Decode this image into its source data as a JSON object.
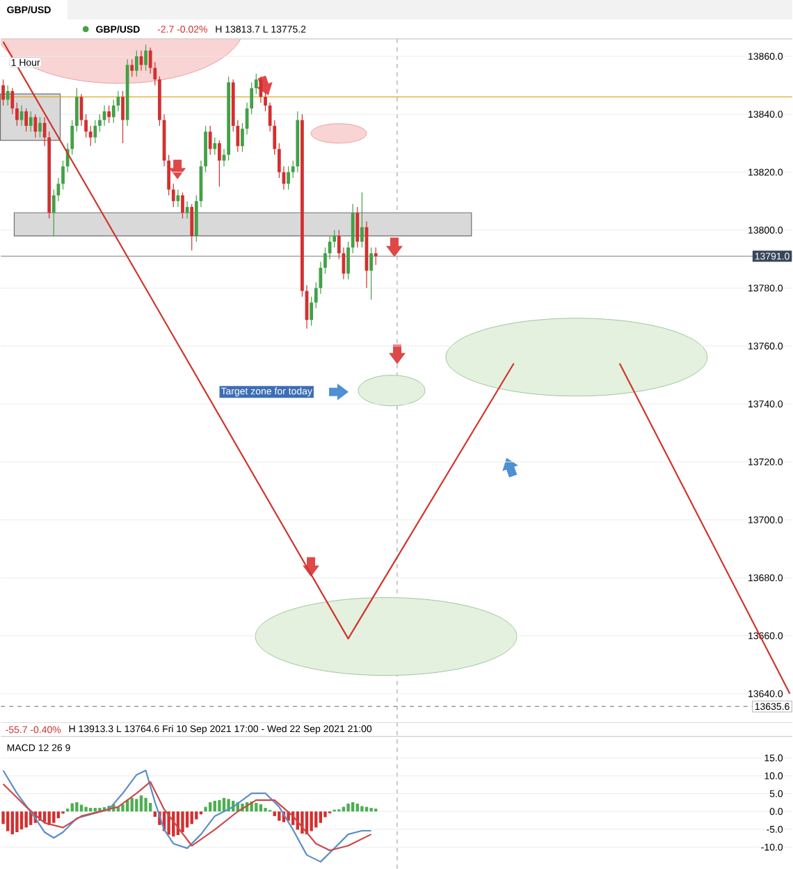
{
  "chart_data": [
    {
      "type": "candlestick",
      "title": "GBP/USD",
      "annotations": [
        "GBP/USD",
        "-2.7  -0.02%",
        "H 13813.7  L 13775.2",
        "1 Hour",
        "Target zone for today",
        "-55.7  -0.40%",
        "H 13913.3  L 13764.6  Fri 10 Sep 2021 17:00 - Wed 22 Sep 2021 21:00"
      ],
      "categories": [
        null,
        null,
        null,
        null,
        null,
        null,
        null,
        null,
        null,
        null,
        null,
        null,
        null,
        null,
        null,
        null,
        null,
        null,
        null,
        null,
        null,
        null,
        null,
        null,
        null,
        null,
        null,
        null,
        null,
        null,
        null,
        null,
        null,
        null,
        null,
        null,
        null,
        null,
        null,
        null,
        null,
        null,
        null,
        null,
        null,
        null,
        null,
        null,
        null,
        null,
        null,
        null,
        null,
        null,
        null,
        null,
        null,
        null,
        null,
        null,
        null,
        null,
        null,
        null,
        null,
        null,
        null,
        null,
        null,
        null,
        null,
        null,
        null,
        null,
        null,
        null,
        null,
        null,
        null,
        null,
        null,
        null,
        null,
        null,
        null,
        null,
        null,
        null,
        null,
        null,
        null,
        null,
        null,
        null,
        null,
        null,
        null,
        null,
        null,
        null,
        null,
        null,
        null,
        null,
        null,
        null,
        null,
        null,
        null,
        null,
        null,
        null,
        null,
        null,
        null,
        null,
        null,
        null,
        null,
        null,
        null,
        null,
        null,
        null,
        null,
        null,
        null,
        null,
        null,
        null,
        null,
        null,
        null,
        null,
        null,
        null,
        null,
        null,
        null,
        null,
        null,
        null,
        null,
        null,
        null,
        null,
        null,
        null,
        null,
        null,
        null,
        null,
        null,
        null,
        null,
        null,
        null,
        null,
        null,
        null,
        null,
        null,
        null,
        null,
        null,
        null,
        null,
        null,
        null,
        null,
        null,
        null
      ],
      "ohlc": [
        [
          13850,
          13852,
          13843,
          13845
        ],
        [
          13845,
          13850,
          13843,
          13848
        ],
        [
          13848,
          13849,
          13840,
          13842
        ],
        [
          13842,
          13844,
          13836,
          13838
        ],
        [
          13838,
          13843,
          13836,
          13841
        ],
        [
          13841,
          13842,
          13834,
          13836
        ],
        [
          13836,
          13841,
          13834,
          13839
        ],
        [
          13839,
          13840,
          13832,
          13834
        ],
        [
          13834,
          13839,
          13832,
          13837
        ],
        [
          13837,
          13839,
          13829,
          13832
        ],
        [
          13832,
          13834,
          13804,
          13806
        ],
        [
          13806,
          13814,
          13798,
          13812
        ],
        [
          13812,
          13818,
          13810,
          13816
        ],
        [
          13816,
          13824,
          13814,
          13822
        ],
        [
          13822,
          13830,
          13820,
          13828
        ],
        [
          13828,
          13838,
          13826,
          13836
        ],
        [
          13836,
          13849,
          13834,
          13846
        ],
        [
          13846,
          13847,
          13836,
          13838
        ],
        [
          13838,
          13840,
          13832,
          13834
        ],
        [
          13834,
          13836,
          13829,
          13832
        ],
        [
          13832,
          13838,
          13830,
          13836
        ],
        [
          13836,
          13840,
          13834,
          13838
        ],
        [
          13838,
          13843,
          13836,
          13841
        ],
        [
          13841,
          13843,
          13837,
          13839
        ],
        [
          13839,
          13845,
          13837,
          13843
        ],
        [
          13843,
          13848,
          13841,
          13846
        ],
        [
          13846,
          13848,
          13830,
          13838
        ],
        [
          13838,
          13859,
          13836,
          13857
        ],
        [
          13857,
          13859,
          13853,
          13855
        ],
        [
          13855,
          13862,
          13853,
          13860
        ],
        [
          13860,
          13862,
          13855,
          13857
        ],
        [
          13857,
          13864,
          13855,
          13862
        ],
        [
          13862,
          13863,
          13854,
          13856
        ],
        [
          13856,
          13858,
          13850,
          13852
        ],
        [
          13852,
          13853,
          13836,
          13838
        ],
        [
          13838,
          13840,
          13822,
          13824
        ],
        [
          13824,
          13826,
          13812,
          13814
        ],
        [
          13814,
          13816,
          13808,
          13810
        ],
        [
          13810,
          13814,
          13808,
          13812
        ],
        [
          13812,
          13813,
          13804,
          13806
        ],
        [
          13806,
          13810,
          13804,
          13808
        ],
        [
          13808,
          13809,
          13793,
          13798
        ],
        [
          13798,
          13812,
          13796,
          13810
        ],
        [
          13810,
          13824,
          13808,
          13822
        ],
        [
          13822,
          13836,
          13820,
          13834
        ],
        [
          13834,
          13836,
          13826,
          13828
        ],
        [
          13828,
          13832,
          13826,
          13830
        ],
        [
          13830,
          13831,
          13815,
          13824
        ],
        [
          13824,
          13828,
          13822,
          13826
        ],
        [
          13826,
          13853,
          13824,
          13851
        ],
        [
          13851,
          13852,
          13834,
          13836
        ],
        [
          13836,
          13838,
          13827,
          13829
        ],
        [
          13829,
          13837,
          13827,
          13835
        ],
        [
          13835,
          13844,
          13833,
          13842
        ],
        [
          13842,
          13851,
          13840,
          13849
        ],
        [
          13849,
          13854,
          13847,
          13852
        ],
        [
          13852,
          13853,
          13844,
          13846
        ],
        [
          13846,
          13848,
          13841,
          13843
        ],
        [
          13843,
          13844,
          13834,
          13836
        ],
        [
          13836,
          13838,
          13826,
          13828
        ],
        [
          13828,
          13830,
          13818,
          13820
        ],
        [
          13820,
          13822,
          13814,
          13816
        ],
        [
          13816,
          13822,
          13814,
          13820
        ],
        [
          13820,
          13824,
          13818,
          13822
        ],
        [
          13822,
          13841,
          13820,
          13838
        ],
        [
          13838,
          13840,
          13777,
          13779
        ],
        [
          13779,
          13781,
          13766,
          13769
        ],
        [
          13769,
          13777,
          13767,
          13775
        ],
        [
          13775,
          13782,
          13773,
          13780
        ],
        [
          13780,
          13789,
          13778,
          13787
        ],
        [
          13787,
          13794,
          13785,
          13792
        ],
        [
          13792,
          13798,
          13790,
          13796
        ],
        [
          13796,
          13800,
          13794,
          13798
        ],
        [
          13798,
          13800,
          13790,
          13792
        ],
        [
          13792,
          13794,
          13783,
          13785
        ],
        [
          13785,
          13796,
          13783,
          13794
        ],
        [
          13794,
          13809,
          13792,
          13806
        ],
        [
          13806,
          13808,
          13794,
          13796
        ],
        [
          13796,
          13813,
          13794,
          13801
        ],
        [
          13801,
          13803,
          13780,
          13786
        ],
        [
          13786,
          13794,
          13776,
          13792
        ],
        [
          13792,
          13794,
          13788,
          13791
        ],
        null,
        null,
        null,
        null,
        null,
        null,
        null,
        null,
        null,
        null,
        null,
        null,
        null,
        null,
        null,
        null,
        null,
        null,
        null,
        null,
        null,
        null,
        null,
        null,
        null,
        null,
        null,
        null,
        null,
        null,
        null,
        null,
        null,
        null,
        null,
        null,
        null,
        null,
        null,
        null,
        null,
        null,
        null,
        null,
        null,
        null,
        null,
        null,
        null,
        null,
        null,
        null,
        null,
        null,
        null,
        null,
        null,
        null,
        null,
        null,
        null,
        null,
        null,
        null,
        null,
        null,
        null,
        null,
        null,
        null,
        null,
        null,
        null,
        null,
        null,
        null,
        null,
        null,
        null,
        null,
        null,
        null,
        null,
        null,
        null,
        null,
        null,
        null,
        null,
        null
      ],
      "series": [
        {
          "type": "line",
          "color": "#d0342c",
          "values": [
            13865,
            null,
            null,
            null,
            null,
            null,
            null,
            null,
            null,
            null,
            null,
            null,
            null,
            null,
            null,
            null,
            null,
            null,
            null,
            null,
            null,
            null,
            null,
            null,
            null,
            null,
            null,
            null,
            null,
            null,
            null,
            null,
            null,
            null,
            null,
            null,
            null,
            null,
            null,
            null,
            null,
            null,
            null,
            null,
            null,
            null,
            null,
            null,
            null,
            null,
            null,
            null,
            null,
            null,
            null,
            null,
            null,
            null,
            null,
            null,
            null,
            null,
            null,
            null,
            null,
            null,
            null,
            null,
            null,
            null,
            null,
            null,
            null,
            null,
            null,
            13659,
            null,
            null,
            null,
            null,
            null,
            null,
            null,
            null,
            null,
            null,
            null,
            null,
            null,
            null,
            null,
            null,
            null,
            null,
            null,
            null,
            null,
            null,
            null,
            null,
            null,
            null,
            null,
            null,
            null,
            null,
            null,
            null,
            null,
            null,
            null,
            13754,
            null,
            null,
            null,
            null,
            null,
            null,
            null,
            null,
            null,
            null,
            null,
            null,
            null,
            null,
            null,
            null,
            null,
            null,
            null,
            null,
            null,
            null,
            null,
            null,
            null,
            null,
            null,
            null,
            null,
            null,
            null,
            null,
            null,
            null,
            null,
            null,
            null,
            null,
            null,
            null,
            null,
            null,
            null,
            null,
            null,
            null,
            null,
            null,
            null,
            null,
            null,
            null,
            null,
            null,
            null,
            null,
            null,
            null,
            null,
            null
          ]
        },
        {
          "type": "line",
          "color": "#d0342c",
          "values": [
            null,
            null,
            null,
            null,
            null,
            null,
            null,
            null,
            null,
            null,
            null,
            null,
            null,
            null,
            null,
            null,
            null,
            null,
            null,
            null,
            null,
            null,
            null,
            null,
            null,
            null,
            null,
            null,
            null,
            null,
            null,
            null,
            null,
            null,
            null,
            null,
            null,
            null,
            null,
            null,
            null,
            null,
            null,
            null,
            null,
            null,
            null,
            null,
            null,
            null,
            null,
            null,
            null,
            null,
            null,
            null,
            null,
            null,
            null,
            null,
            null,
            null,
            null,
            null,
            null,
            null,
            null,
            null,
            null,
            null,
            null,
            null,
            null,
            null,
            null,
            null,
            null,
            null,
            null,
            null,
            null,
            null,
            null,
            null,
            null,
            null,
            null,
            null,
            null,
            null,
            null,
            null,
            null,
            null,
            null,
            null,
            null,
            null,
            null,
            null,
            null,
            null,
            null,
            null,
            null,
            null,
            null,
            null,
            null,
            null,
            null,
            null,
            null,
            null,
            null,
            null,
            null,
            null,
            null,
            null,
            null,
            null,
            null,
            null,
            null,
            null,
            null,
            null,
            null,
            null,
            null,
            null,
            null,
            null,
            13754,
            null,
            null,
            null,
            null,
            null,
            null,
            null,
            null,
            null,
            null,
            null,
            null,
            null,
            null,
            null,
            null,
            null,
            null,
            null,
            null,
            null,
            null,
            null,
            null,
            null,
            null,
            null,
            null,
            null,
            null,
            null,
            null,
            null,
            null,
            null,
            null,
            13640
          ]
        }
      ],
      "ylim": [
        13630,
        13866
      ],
      "yticks": [
        {
          "value": 13640,
          "label": "13640.0"
        },
        {
          "value": 13660,
          "label": "13660.0"
        },
        {
          "value": 13680,
          "label": "13680.0"
        },
        {
          "value": 13700,
          "label": "13700.0"
        },
        {
          "value": 13720,
          "label": "13720.0"
        },
        {
          "value": 13740,
          "label": "13740.0"
        },
        {
          "value": 13760,
          "label": "13760.0"
        },
        {
          "value": 13780,
          "label": "13780.0"
        },
        {
          "value": 13800,
          "label": "13800.0"
        },
        {
          "value": 13820,
          "label": "13820.0"
        },
        {
          "value": 13840,
          "label": "13840.0"
        },
        {
          "value": 13860,
          "label": "13860.0"
        }
      ],
      "tick_labels": "y",
      "grid": "y",
      "bands": [
        {
          "axis": "y",
          "from": 13798,
          "to": 13806,
          "color": "#d9d9d9"
        },
        {
          "axis": "y",
          "from": 13831,
          "to": 13847,
          "color": "#d9d9d9"
        }
      ],
      "ref_lines": [
        {
          "axis": "y",
          "value": 13846,
          "color": "#e0a526",
          "line_style": "solid"
        },
        {
          "axis": "y",
          "value": 13791,
          "label": "13791.0",
          "color": "#9e9e9e",
          "line_style": "solid"
        },
        {
          "axis": "y",
          "value": 13635.6,
          "label": "13635.6",
          "color": "#9e9e9e",
          "line_style": "dashed"
        }
      ]
    },
    {
      "type": "bar",
      "title": "MACD  12  26  9",
      "categories": [
        null,
        null,
        null,
        null,
        null,
        null,
        null,
        null,
        null,
        null,
        null,
        null,
        null,
        null,
        null,
        null,
        null,
        null,
        null,
        null,
        null,
        null,
        null,
        null,
        null,
        null,
        null,
        null,
        null,
        null,
        null,
        null,
        null,
        null,
        null,
        null,
        null,
        null,
        null,
        null,
        null,
        null,
        null,
        null,
        null,
        null,
        null,
        null,
        null,
        null,
        null,
        null,
        null,
        null,
        null,
        null,
        null,
        null,
        null,
        null,
        null,
        null,
        null,
        null,
        null,
        null,
        null,
        null,
        null,
        null,
        null,
        null,
        null,
        null,
        null,
        null,
        null,
        null,
        null,
        null,
        null,
        null,
        null,
        null,
        null,
        null,
        null,
        null,
        null,
        null,
        null,
        null,
        null,
        null,
        null,
        null,
        null,
        null,
        null,
        null,
        null,
        null,
        null,
        null,
        null,
        null,
        null,
        null,
        null,
        null,
        null,
        null,
        null,
        null,
        null,
        null,
        null,
        null,
        null,
        null,
        null,
        null,
        null,
        null,
        null,
        null,
        null,
        null,
        null,
        null,
        null,
        null,
        null,
        null,
        null,
        null,
        null,
        null,
        null,
        null,
        null,
        null,
        null,
        null,
        null,
        null,
        null,
        null,
        null,
        null,
        null,
        null,
        null,
        null,
        null,
        null,
        null,
        null,
        null,
        null,
        null,
        null,
        null,
        null,
        null,
        null,
        null,
        null,
        null,
        null,
        null,
        null
      ],
      "series": [
        {
          "type": "bar",
          "values": [
            -3.5,
            -5.5,
            -6.4,
            -5.8,
            -5.0,
            -4.5,
            -3.8,
            -3.2,
            -2.6,
            -3.0,
            -3.8,
            -3.2,
            -1.9,
            -0.6,
            0.8,
            2.3,
            2.6,
            1.9,
            1.3,
            1.0,
            1.0,
            1.0,
            1.2,
            1.6,
            2.0,
            1.3,
            2.0,
            3.2,
            3.8,
            3.5,
            4.5,
            3.8,
            2.4,
            -1.5,
            -3.8,
            -5.5,
            -6.5,
            -7.0,
            -6.6,
            -5.8,
            -4.5,
            -3.5,
            -2.2,
            -0.8,
            1.3,
            2.6,
            3.0,
            3.2,
            3.8,
            3.5,
            3.0,
            2.6,
            2.2,
            2.6,
            2.8,
            2.4,
            2.0,
            1.0,
            0.4,
            -1.3,
            -2.6,
            -3.0,
            -2.6,
            -3.8,
            -5.1,
            -6.2,
            -6.4,
            -5.5,
            -4.5,
            -3.2,
            -1.6,
            -0.5,
            0.5,
            0.6,
            1.3,
            2.2,
            2.6,
            2.2,
            1.5,
            1.3,
            1.0,
            0.8,
            null,
            null,
            null,
            null,
            null,
            null,
            null,
            null,
            null,
            null,
            null,
            null,
            null,
            null,
            null,
            null,
            null,
            null,
            null,
            null,
            null,
            null,
            null,
            null,
            null,
            null,
            null,
            null,
            null,
            null,
            null,
            null,
            null,
            null,
            null,
            null,
            null,
            null,
            null,
            null,
            null,
            null,
            null,
            null,
            null,
            null,
            null,
            null,
            null,
            null,
            null,
            null,
            null,
            null,
            null,
            null,
            null,
            null,
            null,
            null,
            null,
            null,
            null,
            null,
            null,
            null,
            null,
            null,
            null,
            null,
            null,
            null,
            null,
            null,
            null,
            null,
            null,
            null,
            null,
            null,
            null,
            null,
            null,
            null,
            null,
            null,
            null,
            null,
            null,
            null
          ],
          "colors": [
            "#d32f2f",
            "#d32f2f",
            "#d32f2f",
            "#d32f2f",
            "#d32f2f",
            "#d32f2f",
            "#d32f2f",
            "#d32f2f",
            "#d32f2f",
            "#d32f2f",
            "#d32f2f",
            "#d32f2f",
            "#d32f2f",
            "#d32f2f",
            "#4caf50",
            "#4caf50",
            "#4caf50",
            "#4caf50",
            "#4caf50",
            "#4caf50",
            "#4caf50",
            "#4caf50",
            "#4caf50",
            "#4caf50",
            "#4caf50",
            "#4caf50",
            "#4caf50",
            "#4caf50",
            "#4caf50",
            "#4caf50",
            "#4caf50",
            "#4caf50",
            "#4caf50",
            "#d32f2f",
            "#d32f2f",
            "#d32f2f",
            "#d32f2f",
            "#d32f2f",
            "#d32f2f",
            "#d32f2f",
            "#d32f2f",
            "#d32f2f",
            "#d32f2f",
            "#d32f2f",
            "#4caf50",
            "#4caf50",
            "#4caf50",
            "#4caf50",
            "#4caf50",
            "#4caf50",
            "#4caf50",
            "#4caf50",
            "#4caf50",
            "#4caf50",
            "#4caf50",
            "#4caf50",
            "#4caf50",
            "#4caf50",
            "#4caf50",
            "#d32f2f",
            "#d32f2f",
            "#d32f2f",
            "#d32f2f",
            "#d32f2f",
            "#d32f2f",
            "#d32f2f",
            "#d32f2f",
            "#d32f2f",
            "#d32f2f",
            "#d32f2f",
            "#d32f2f",
            "#d32f2f",
            "#4caf50",
            "#4caf50",
            "#4caf50",
            "#4caf50",
            "#4caf50",
            "#4caf50",
            "#4caf50",
            "#4caf50",
            "#4caf50",
            "#4caf50",
            null,
            null,
            null,
            null,
            null,
            null,
            null,
            null,
            null,
            null,
            null,
            null,
            null,
            null,
            null,
            null,
            null,
            null,
            null,
            null,
            null,
            null,
            null,
            null,
            null,
            null,
            null,
            null,
            null,
            null,
            null,
            null,
            null,
            null,
            null,
            null,
            null,
            null,
            null,
            null,
            null,
            null,
            null,
            null,
            null,
            null,
            null,
            null,
            null,
            null,
            null,
            null,
            null,
            null,
            null,
            null,
            null,
            null,
            null,
            null,
            null,
            null,
            null,
            null,
            null,
            null,
            null,
            null,
            null,
            null,
            null,
            null,
            null,
            null,
            null,
            null,
            null,
            null,
            null,
            null,
            null,
            null,
            null,
            null,
            null,
            null,
            null,
            null,
            null,
            null
          ]
        },
        {
          "type": "line",
          "color": "#5b8ec9",
          "values": [
            11.5,
            null,
            null,
            5.1,
            null,
            null,
            null,
            -1.9,
            null,
            -5.8,
            null,
            -7.4,
            null,
            -5.8,
            null,
            null,
            -1.9,
            null,
            null,
            null,
            null,
            null,
            null,
            0.6,
            null,
            null,
            5.1,
            null,
            null,
            10.3,
            null,
            11.5,
            null,
            2.6,
            null,
            -5.1,
            null,
            -9.0,
            null,
            null,
            -10.3,
            null,
            null,
            -6.4,
            null,
            null,
            -1.3,
            null,
            null,
            null,
            1.3,
            null,
            null,
            null,
            5.1,
            null,
            null,
            5.1,
            null,
            null,
            1.3,
            null,
            null,
            -5.1,
            null,
            null,
            -12.2,
            null,
            null,
            -14.1,
            null,
            null,
            -10.3,
            null,
            null,
            -6.4,
            null,
            null,
            -5.4,
            null,
            -5.4,
            null,
            null,
            null,
            null,
            null,
            null,
            null,
            null,
            null,
            null,
            null,
            null,
            null,
            null,
            null,
            null,
            null,
            null,
            null,
            null,
            null,
            null,
            null,
            null,
            null,
            null,
            null,
            null,
            null,
            null,
            null,
            null,
            null,
            null,
            null,
            null,
            null,
            null,
            null,
            null,
            null,
            null,
            null,
            null,
            null,
            null,
            null,
            null,
            null,
            null,
            null,
            null,
            null,
            null,
            null,
            null,
            null,
            null,
            null,
            null,
            null,
            null,
            null,
            null,
            null,
            null,
            null,
            null,
            null,
            null,
            null,
            null,
            null,
            null,
            null,
            null,
            null,
            null,
            null,
            null,
            null,
            null,
            null,
            null,
            null,
            null,
            null,
            null,
            null,
            null,
            null
          ]
        },
        {
          "type": "line",
          "color": "#c94a4a",
          "values": [
            7.7,
            null,
            null,
            null,
            null,
            1.3,
            null,
            null,
            null,
            -3.2,
            null,
            null,
            null,
            -4.5,
            null,
            null,
            null,
            -1.3,
            null,
            null,
            null,
            null,
            null,
            null,
            null,
            1.3,
            null,
            null,
            null,
            5.1,
            null,
            null,
            8.3,
            null,
            null,
            0.6,
            null,
            null,
            null,
            null,
            null,
            -9.6,
            null,
            null,
            null,
            null,
            -5.1,
            null,
            null,
            null,
            null,
            0,
            null,
            null,
            null,
            3.2,
            null,
            null,
            null,
            3.2,
            null,
            null,
            null,
            -1.3,
            null,
            null,
            null,
            null,
            -9.0,
            null,
            null,
            -10.9,
            null,
            null,
            null,
            -9.6,
            null,
            null,
            null,
            null,
            -6.4,
            null,
            null,
            null,
            null,
            null,
            null,
            null,
            null,
            null,
            null,
            null,
            null,
            null,
            null,
            null,
            null,
            null,
            null,
            null,
            null,
            null,
            null,
            null,
            null,
            null,
            null,
            null,
            null,
            null,
            null,
            null,
            null,
            null,
            null,
            null,
            null,
            null,
            null,
            null,
            null,
            null,
            null,
            null,
            null,
            null,
            null,
            null,
            null,
            null,
            null,
            null,
            null,
            null,
            null,
            null,
            null,
            null,
            null,
            null,
            null,
            null,
            null,
            null,
            null,
            null,
            null,
            null,
            null,
            null,
            null,
            null,
            null,
            null,
            null,
            null,
            null,
            null,
            null,
            null,
            null,
            null,
            null,
            null,
            null,
            null,
            null,
            null,
            null,
            null,
            null,
            null
          ]
        }
      ],
      "ylim": [
        -16,
        21
      ],
      "yticks": [
        {
          "value": -10,
          "label": "-10.0"
        },
        {
          "value": -5,
          "label": "-5.0"
        },
        {
          "value": 0,
          "label": "0.0"
        },
        {
          "value": 5,
          "label": "5.0"
        },
        {
          "value": 10,
          "label": "10.0"
        },
        {
          "value": 15,
          "label": "15.0"
        }
      ],
      "tick_labels": "y",
      "grid": "y"
    }
  ]
}
